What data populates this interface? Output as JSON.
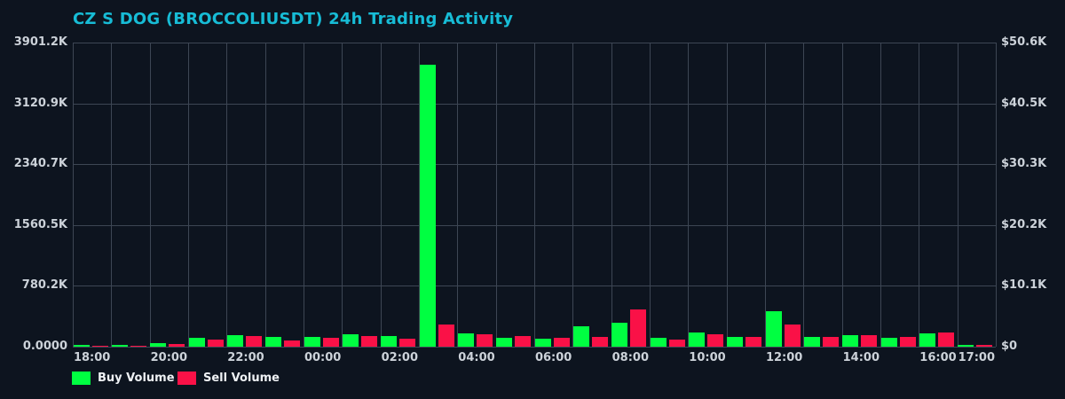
{
  "title": "CZ S DOG (BROCCOLIUSDT) 24h Trading Activity",
  "colors": {
    "background": "#0d141f",
    "grid": "#3d4654",
    "title": "#17bcd6",
    "tick_text": "#ccd2d9",
    "legend_text": "#eef1f4",
    "buy": "#00ff41",
    "sell": "#fa1147"
  },
  "legend": {
    "items": [
      {
        "label": "Buy Volume",
        "color": "#00ff41"
      },
      {
        "label": "Sell Volume",
        "color": "#fa1147"
      }
    ]
  },
  "chart_data": {
    "type": "bar",
    "title": "CZ S DOG (BROCCOLIUSDT) 24h Trading Activity",
    "categories": [
      "18:00",
      "19:00",
      "20:00",
      "21:00",
      "22:00",
      "23:00",
      "00:00",
      "01:00",
      "02:00",
      "03:00",
      "04:00",
      "05:00",
      "06:00",
      "07:00",
      "08:00",
      "09:00",
      "10:00",
      "11:00",
      "12:00",
      "13:00",
      "14:00",
      "15:00",
      "16:00",
      "17:00"
    ],
    "series": [
      {
        "name": "Buy Volume",
        "color": "#00ff41",
        "values": [
          23000,
          20000,
          45000,
          114000,
          152000,
          129000,
          125000,
          155000,
          140000,
          3618000,
          175000,
          114000,
          106000,
          265000,
          307000,
          117000,
          186000,
          121000,
          451000,
          121000,
          148000,
          117000,
          174000,
          26000
        ]
      },
      {
        "name": "Sell Volume",
        "color": "#fa1147",
        "values": [
          15000,
          15000,
          30000,
          87000,
          133000,
          76000,
          110000,
          136000,
          106000,
          284000,
          160000,
          133000,
          117000,
          125000,
          475000,
          87000,
          155000,
          121000,
          288000,
          125000,
          144000,
          125000,
          182000,
          19000
        ]
      }
    ],
    "ylim": [
      0,
      3901200
    ],
    "grid": true,
    "legend_position": "bottom-left",
    "y_axis_left": {
      "ticks": [
        "3901.2K",
        "3120.9K",
        "2340.7K",
        "1560.5K",
        "780.2K",
        "0.0000"
      ]
    },
    "y_axis_right": {
      "ticks": [
        "$50.6K",
        "$40.5K",
        "$30.3K",
        "$20.2K",
        "$10.1K",
        "$0"
      ]
    },
    "x_tick_indices": [
      0,
      2,
      4,
      6,
      8,
      10,
      12,
      14,
      16,
      18,
      20,
      22,
      23
    ],
    "x_tick_labels": [
      "18:00",
      "20:00",
      "22:00",
      "00:00",
      "02:00",
      "04:00",
      "06:00",
      "08:00",
      "10:00",
      "12:00",
      "14:00",
      "16:00",
      "17:00"
    ]
  }
}
